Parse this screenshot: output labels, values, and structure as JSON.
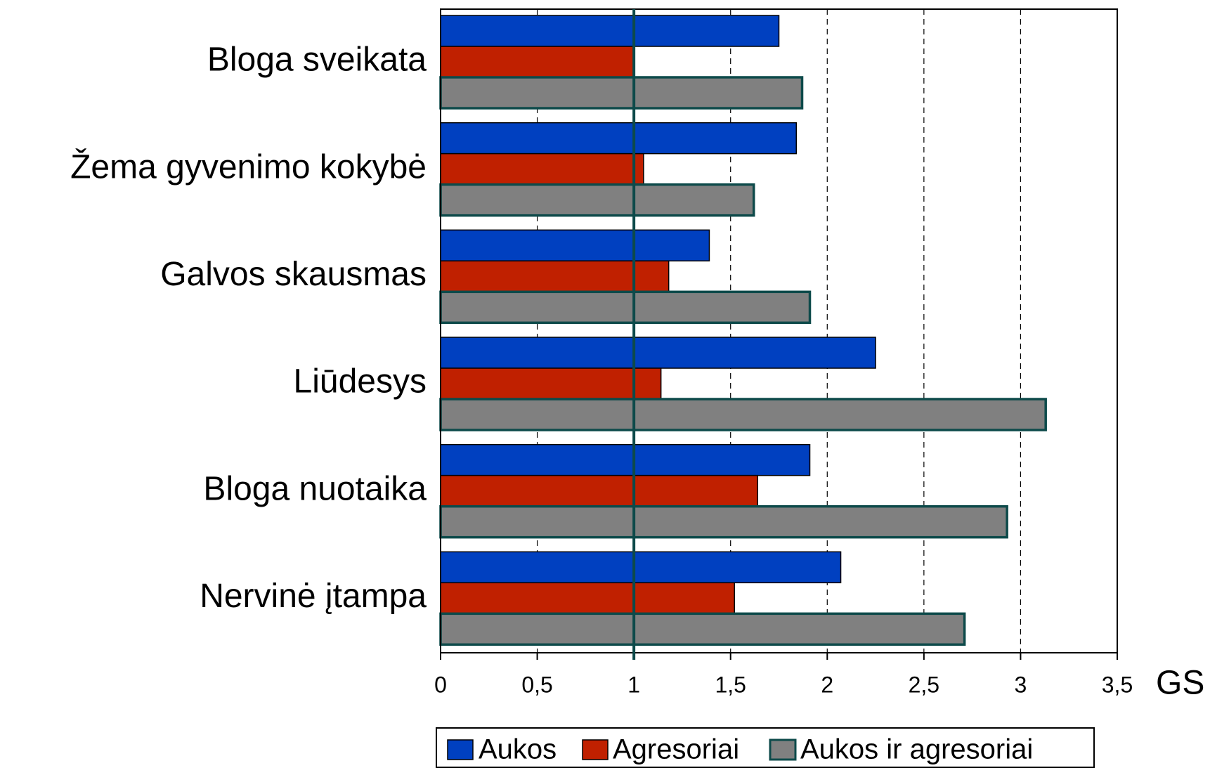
{
  "chart_data": {
    "type": "hbar",
    "categories": [
      "Bloga sveikata",
      "Žema gyvenimo kokybė",
      "Galvos skausmas",
      "Liūdesys",
      "Bloga nuotaika",
      "Nervinė įtampa"
    ],
    "series": [
      {
        "name": "Aukos",
        "color": "#0040c0",
        "values": [
          1.75,
          1.84,
          1.39,
          2.25,
          1.91,
          2.07
        ]
      },
      {
        "name": "Agresoriai",
        "color": "#c02000",
        "values": [
          1.0,
          1.05,
          1.18,
          1.14,
          1.64,
          1.52
        ]
      },
      {
        "name": "Aukos ir agresoriai",
        "color": "#808080",
        "values": [
          1.87,
          1.62,
          1.91,
          3.13,
          2.93,
          2.71
        ]
      }
    ],
    "xlabel": "GS",
    "xlim": [
      0,
      3.5
    ],
    "xticks": [
      0,
      {
        "value": 0.5,
        "label": "0,5"
      },
      1,
      {
        "value": 1.5,
        "label": "1,5"
      },
      2,
      {
        "value": 2.5,
        "label": "2,5"
      },
      3,
      {
        "value": 3.5,
        "label": "3,5"
      }
    ],
    "grid": true,
    "reference_line": {
      "value": 1,
      "color": "#0d4a4a"
    },
    "legend": "bottom"
  }
}
